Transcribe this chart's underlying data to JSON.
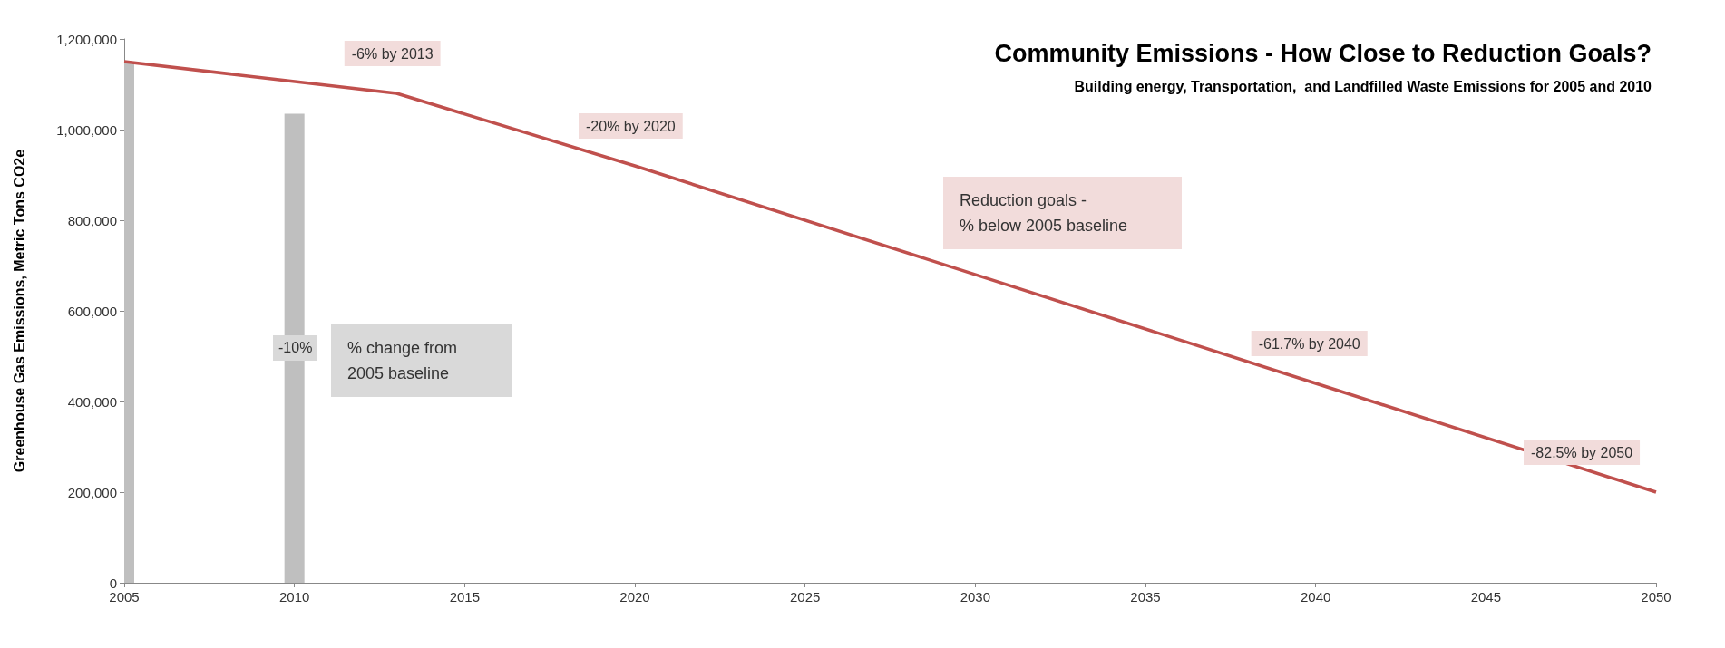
{
  "chart_data": {
    "type": "line",
    "title": "Community Emissions - How Close to Reduction Goals?",
    "subtitle": "Building energy, Transportation,  and Landfilled Waste Emissions for 2005 and 2010",
    "ylabel": "Greenhouse Gas Emissions, Metric Tons CO2e",
    "xlim": [
      2005,
      2050
    ],
    "xticks": [
      2005,
      2010,
      2015,
      2020,
      2025,
      2030,
      2035,
      2040,
      2045,
      2050
    ],
    "ylim": [
      0,
      1200000
    ],
    "yticks": [
      0,
      {
        "value": 200000,
        "label": "200,000"
      },
      {
        "value": 400000,
        "label": "400,000"
      },
      {
        "value": 600000,
        "label": "600,000"
      },
      {
        "value": 800000,
        "label": "800,000"
      },
      {
        "value": 1000000,
        "label": "1,000,000"
      },
      {
        "value": 1200000,
        "label": "1,200,000"
      }
    ],
    "series": [
      {
        "type": "bar",
        "color": "#bfbfbf",
        "x": [
          2005,
          2010
        ],
        "values": [
          1150000,
          1035000
        ]
      },
      {
        "color": "#c0504d",
        "x": [
          2005,
          2013,
          2020,
          2040,
          2050
        ],
        "values": [
          1150000,
          1080000,
          920000,
          440000,
          200000
        ]
      }
    ],
    "annotations": [
      {
        "text": "-6% by 2013",
        "x": 2013,
        "y": 1080000
      },
      {
        "text": "-20% by 2020",
        "x": 2020,
        "y": 920000
      },
      {
        "text": "-61.7% by 2040",
        "x": 2040,
        "y": 440000
      },
      {
        "text": "-82.5% by 2050",
        "x": 2050,
        "y": 200000
      },
      "-10%",
      "Reduction goals -\n% below 2005 baseline",
      "% change from\n2005 baseline"
    ]
  }
}
